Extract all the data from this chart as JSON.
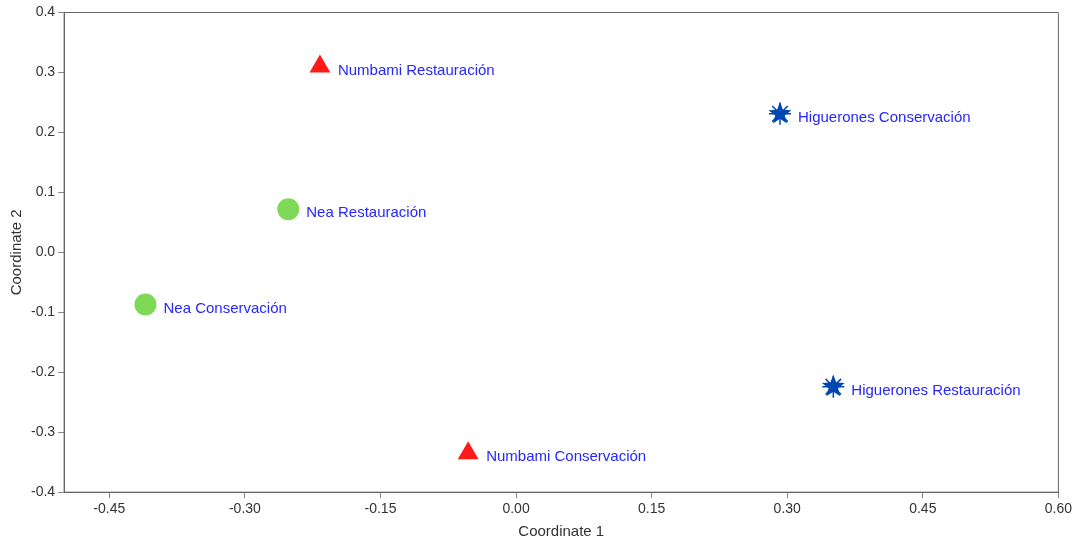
{
  "chart_data": {
    "type": "scatter",
    "xlabel": "Coordinate 1",
    "ylabel": "Coordinate 2",
    "series": [
      {
        "color": "#ff1a1a",
        "marker": "triangle",
        "x": [
          -0.217,
          -0.053
        ],
        "values": [
          0.31,
          -0.335
        ]
      },
      {
        "color": "#0047b3",
        "marker": "star",
        "x": [
          0.292,
          0.351
        ],
        "values": [
          0.231,
          -0.224
        ]
      },
      {
        "color": "#7ed957",
        "marker": "circle",
        "x": [
          -0.252,
          -0.41
        ],
        "values": [
          0.072,
          -0.087
        ]
      }
    ],
    "annotations": [
      {
        "text": "Numbami Restauración",
        "x": -0.217,
        "y": 0.31
      },
      {
        "text": "Numbami Conservación",
        "x": -0.053,
        "y": -0.335
      },
      {
        "text": "Higuerones Conservación",
        "x": 0.292,
        "y": 0.231
      },
      {
        "text": "Higuerones Restauración",
        "x": 0.351,
        "y": -0.224
      },
      {
        "text": "Nea Restauración",
        "x": -0.252,
        "y": 0.072
      },
      {
        "text": "Nea Conservación",
        "x": -0.41,
        "y": -0.087
      }
    ],
    "xlim": [
      -0.5,
      0.6
    ],
    "xticks": [
      -0.45,
      {
        "value": -0.3,
        "label": "-0.30"
      },
      -0.15,
      {
        "value": 0,
        "label": "0.00"
      },
      0.15,
      {
        "value": 0.3,
        "label": "0.30"
      },
      0.45,
      {
        "value": 0.6,
        "label": "0.60"
      }
    ],
    "ylim": [
      -0.4,
      0.4
    ],
    "yticks": [
      -0.4,
      -0.3,
      -0.2,
      -0.1,
      {
        "value": 0,
        "label": "0.0"
      },
      0.1,
      0.2,
      0.3,
      0.4
    ],
    "grid": false,
    "legend": false
  }
}
